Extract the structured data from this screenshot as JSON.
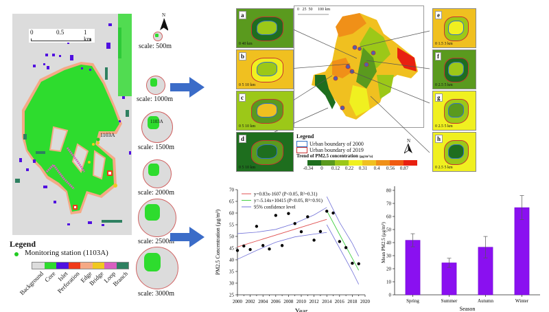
{
  "left_panel": {
    "scalebar": {
      "ticks": [
        "0",
        "0.5",
        "1 km"
      ]
    },
    "station_label": "1103A",
    "legend": {
      "title": "Legend",
      "station": "Monitoring station (1103A)",
      "classes": [
        {
          "name": "Background",
          "color": "#dcdcdc"
        },
        {
          "name": "Core",
          "color": "#2edc2e"
        },
        {
          "name": "Islet",
          "color": "#5010e0"
        },
        {
          "name": "Perforation",
          "color": "#f03a1a"
        },
        {
          "name": "Edge",
          "color": "#f5a985"
        },
        {
          "name": "Bridge",
          "color": "#f0c820"
        },
        {
          "name": "Loop",
          "color": "#d860c0"
        },
        {
          "name": "Branch",
          "color": "#2e8060"
        }
      ]
    }
  },
  "scales": {
    "north_label": "N",
    "items": [
      {
        "label": "scale: 500m"
      },
      {
        "label": "scale: 1000m"
      },
      {
        "label": "scale: 1500m",
        "station": "1103A"
      },
      {
        "label": "scale: 2000m"
      },
      {
        "label": "scale: 2500m"
      },
      {
        "label": "scale: 3000m"
      }
    ]
  },
  "arrow_color": "#3b6cc8",
  "region_map": {
    "scalebar": {
      "ticks": [
        "0",
        "25",
        "50",
        "100 km"
      ]
    },
    "insets": [
      {
        "label": "a",
        "scale": "0  40 km"
      },
      {
        "label": "b",
        "scale": "0  5  10 km"
      },
      {
        "label": "c",
        "scale": "0   5   10 km"
      },
      {
        "label": "d",
        "scale": "0   5   10 km"
      },
      {
        "label": "e",
        "scale": "0 1.5 3 km"
      },
      {
        "label": "f",
        "scale": "0  2.5 5 km"
      },
      {
        "label": "g",
        "scale": "0  2.5 5 km"
      },
      {
        "label": "h",
        "scale": "0 2.5 5 km"
      }
    ],
    "legend": {
      "title": "Legend",
      "boundary_2000": "Urban boundary of 2000",
      "boundary_2019": "Urban boundary of 2019",
      "trend_title": "Trend of PM2.5 concentration",
      "trend_unit": "(μg/m³/a)",
      "ramp_colors": [
        "#1e6e1e",
        "#5a9a1e",
        "#9cc818",
        "#f0f020",
        "#f0c020",
        "#f09018",
        "#f05a10",
        "#e82010"
      ],
      "ramp_ticks": [
        "-0.34",
        "0",
        "0.12",
        "0.22",
        "0.31",
        "0.4",
        "0.56",
        "0.87"
      ]
    },
    "north_label": "N"
  },
  "chart_data": [
    {
      "type": "scatter",
      "title": "",
      "xlabel": "Year",
      "ylabel": "PM2.5 Concentration (μg/m³)",
      "xlim": [
        2000,
        2020
      ],
      "ylim": [
        25,
        70
      ],
      "xticks": [
        "2000",
        "2002",
        "2004",
        "2006",
        "2008",
        "2010",
        "2012",
        "2014",
        "2016",
        "2018",
        "2020"
      ],
      "yticks": [
        "25",
        "30",
        "35",
        "40",
        "45",
        "50",
        "55",
        "60",
        "65",
        "70"
      ],
      "points": [
        {
          "x": 2000,
          "y": 44.0
        },
        {
          "x": 2001,
          "y": 45.9
        },
        {
          "x": 2002,
          "y": 44.4
        },
        {
          "x": 2003,
          "y": 54.3
        },
        {
          "x": 2004,
          "y": 46.1
        },
        {
          "x": 2005,
          "y": 44.6
        },
        {
          "x": 2006,
          "y": 59.0
        },
        {
          "x": 2007,
          "y": 46.1
        },
        {
          "x": 2008,
          "y": 59.8
        },
        {
          "x": 2009,
          "y": 55.5
        },
        {
          "x": 2010,
          "y": 52.0
        },
        {
          "x": 2011,
          "y": 58.4
        },
        {
          "x": 2012,
          "y": 48.4
        },
        {
          "x": 2013,
          "y": 52.1
        },
        {
          "x": 2014,
          "y": 60.8
        },
        {
          "x": 2015,
          "y": 60.0
        },
        {
          "x": 2016,
          "y": 47.8
        },
        {
          "x": 2017,
          "y": 45.2
        },
        {
          "x": 2018,
          "y": 38.5
        },
        {
          "x": 2019,
          "y": 38.3
        }
      ],
      "series": [
        {
          "name": "y=0.83x-1607 (P<0.05, R²=0.31)",
          "color": "#e05050",
          "kind": "fit",
          "x": [
            2000,
            2014
          ],
          "y": [
            45.5,
            57.3
          ]
        },
        {
          "name": "y=-5.14x+10415 (P<0.05, R²=0.91)",
          "color": "#40d040",
          "kind": "fit",
          "x": [
            2014,
            2019
          ],
          "y": [
            61.0,
            35.5
          ]
        },
        {
          "name": "95% confidence level",
          "color": "#7070d8",
          "kind": "ci",
          "bands": [
            {
              "x": [
                2000,
                2003,
                2006,
                2009,
                2012,
                2014
              ],
              "y": [
                51.2,
                51.8,
                53.0,
                55.6,
                59.2,
                62.4
              ]
            },
            {
              "x": [
                2000,
                2003,
                2006,
                2009,
                2012,
                2014
              ],
              "y": [
                40.2,
                44.0,
                47.5,
                49.8,
                51.0,
                51.7
              ]
            },
            {
              "x": [
                2014,
                2016,
                2018,
                2019
              ],
              "y": [
                67.0,
                56.0,
                47.0,
                41.5
              ]
            },
            {
              "x": [
                2014,
                2016,
                2018,
                2019
              ],
              "y": [
                55.0,
                45.0,
                35.0,
                29.5
              ]
            }
          ]
        }
      ],
      "legend_position": "top-left"
    },
    {
      "type": "bar",
      "title": "",
      "xlabel": "Season",
      "ylabel": "Mean PM2.5 (μg/m³)",
      "categories": [
        "Spring",
        "Summer",
        "Autumn",
        "Winter"
      ],
      "values": [
        41.8,
        24.5,
        36.5,
        66.8
      ],
      "errors": [
        5.0,
        3.5,
        8.2,
        9.2
      ],
      "ylim": [
        0,
        80
      ],
      "yticks": [
        "0",
        "10",
        "20",
        "30",
        "40",
        "50",
        "60",
        "70",
        "80"
      ],
      "bar_color": "#8a10f0"
    }
  ]
}
